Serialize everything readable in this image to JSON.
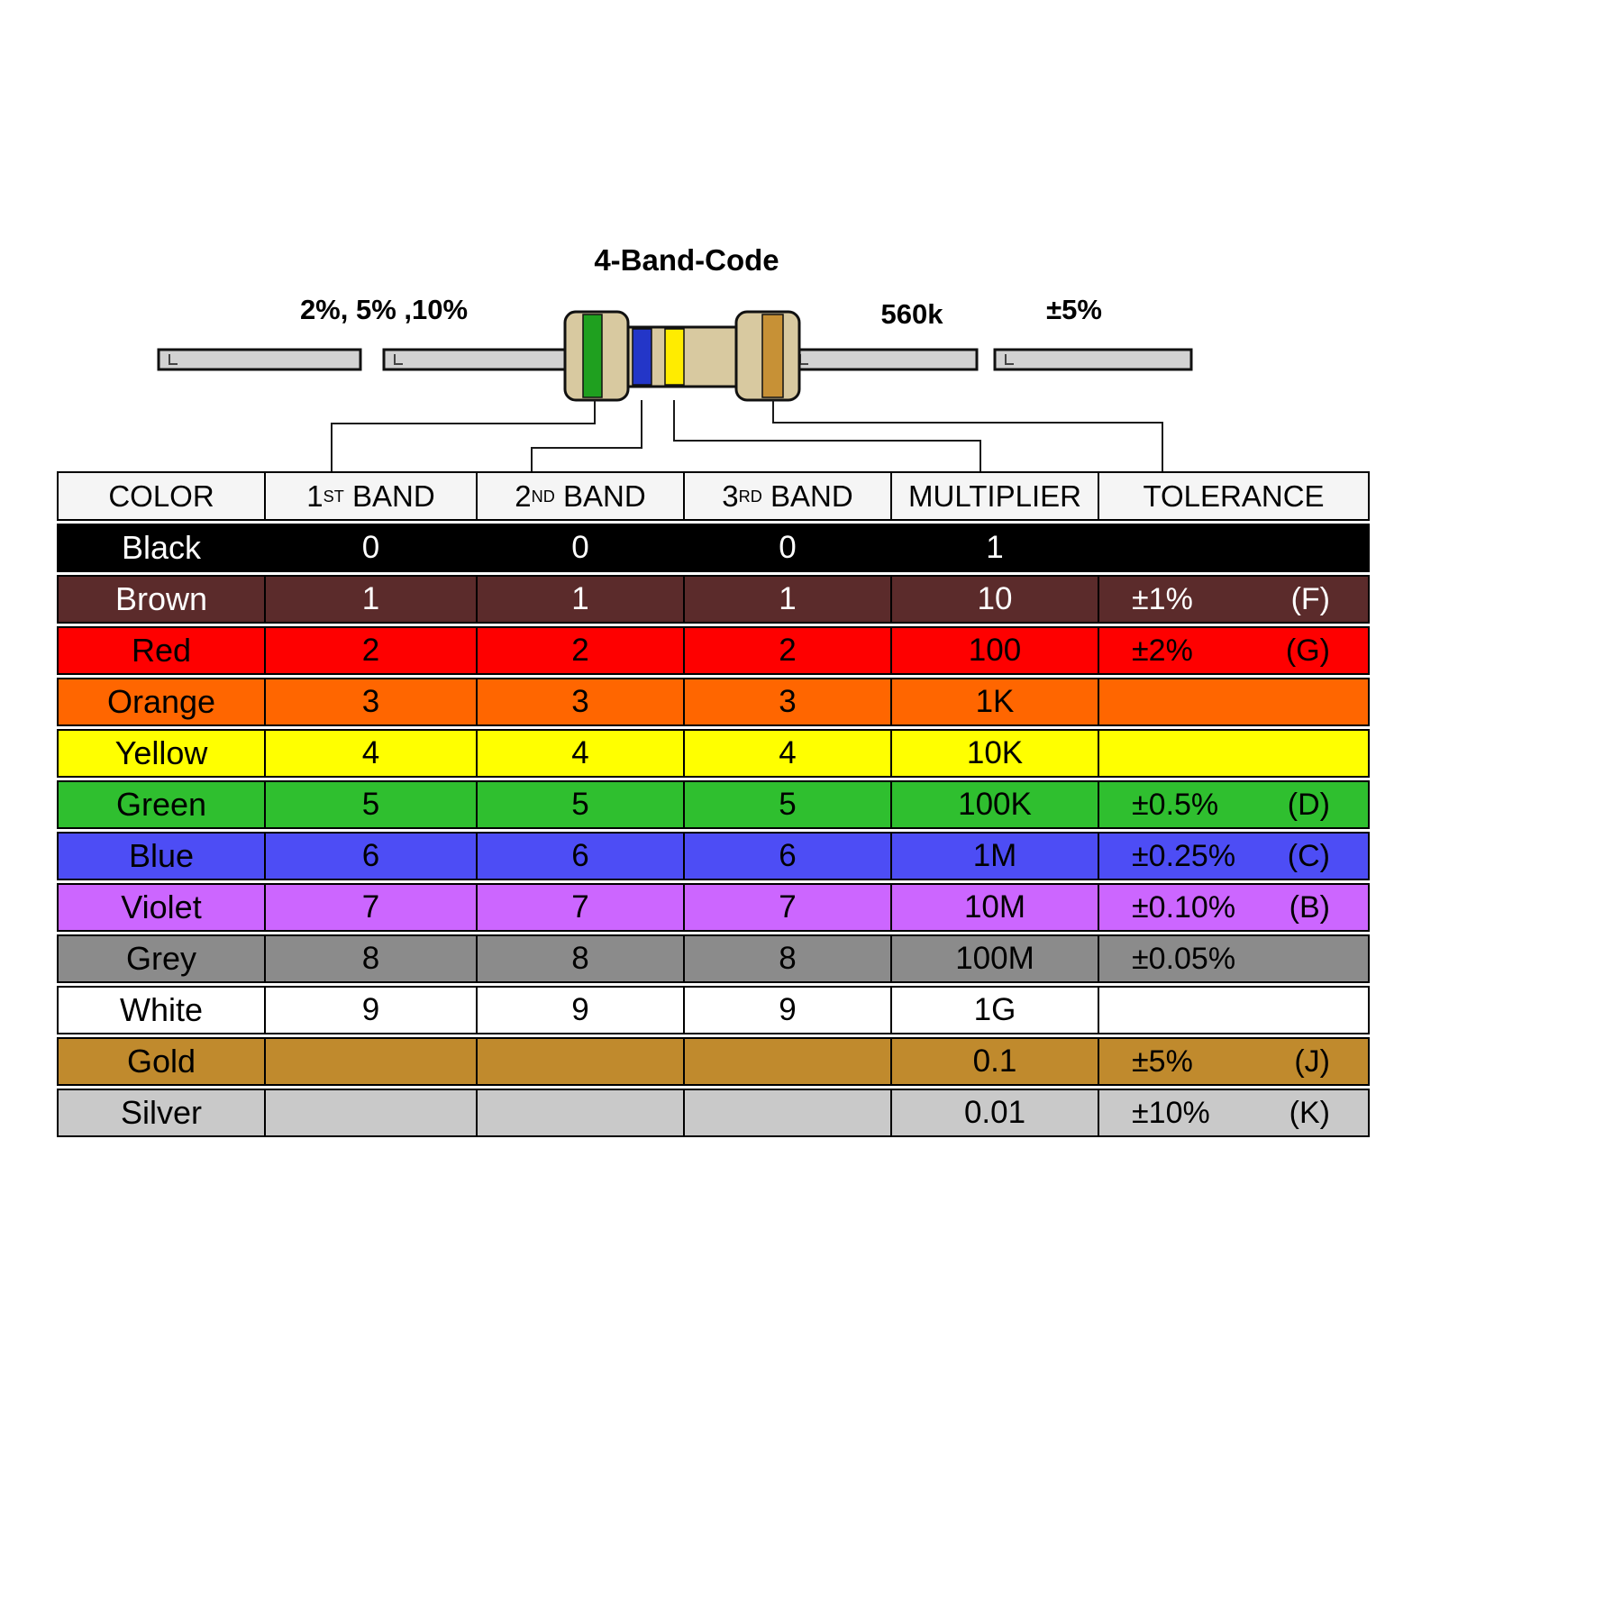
{
  "title": "4-Band-Code",
  "diagram": {
    "tolerance_options_label": "2%, 5% ,10%",
    "resistance_value_label": "560k",
    "tolerance_value_label": "±5%",
    "bands": [
      "green",
      "blue",
      "yellow",
      "gold"
    ]
  },
  "colors": {
    "resistor_body": "#d8c9a0",
    "band_green": "#1fa01f",
    "band_blue": "#2336c8",
    "band_yellow": "#ffec00",
    "band_gold": "#c79136",
    "wire_fill": "#d2d2d2"
  },
  "table": {
    "headers": [
      {
        "pre": "COLOR",
        "sup": "",
        "post": ""
      },
      {
        "pre": "1",
        "sup": "ST",
        "post": " BAND"
      },
      {
        "pre": "2",
        "sup": "ND",
        "post": " BAND"
      },
      {
        "pre": "3",
        "sup": "RD",
        "post": " BAND"
      },
      {
        "pre": "MULTIPLIER",
        "sup": "",
        "post": ""
      },
      {
        "pre": "TOLERANCE",
        "sup": "",
        "post": ""
      }
    ],
    "rows": [
      {
        "name": "Black",
        "b1": "0",
        "b2": "0",
        "b3": "0",
        "mult": "1",
        "tol": "",
        "tol_code": "",
        "bg": "#000000",
        "fg": "#ffffff"
      },
      {
        "name": "Brown",
        "b1": "1",
        "b2": "1",
        "b3": "1",
        "mult": "10",
        "tol": "±1%",
        "tol_code": "(F)",
        "bg": "#5b2b2b",
        "fg": "#ffffff"
      },
      {
        "name": "Red",
        "b1": "2",
        "b2": "2",
        "b3": "2",
        "mult": "100",
        "tol": "±2%",
        "tol_code": "(G)",
        "bg": "#fe0000",
        "fg": "#000000"
      },
      {
        "name": "Orange",
        "b1": "3",
        "b2": "3",
        "b3": "3",
        "mult": "1K",
        "tol": "",
        "tol_code": "",
        "bg": "#ff6600",
        "fg": "#000000"
      },
      {
        "name": "Yellow",
        "b1": "4",
        "b2": "4",
        "b3": "4",
        "mult": "10K",
        "tol": "",
        "tol_code": "",
        "bg": "#ffff00",
        "fg": "#000000"
      },
      {
        "name": "Green",
        "b1": "5",
        "b2": "5",
        "b3": "5",
        "mult": "100K",
        "tol": "±0.5%",
        "tol_code": "(D)",
        "bg": "#2fbf2f",
        "fg": "#000000"
      },
      {
        "name": "Blue",
        "b1": "6",
        "b2": "6",
        "b3": "6",
        "mult": "1M",
        "tol": "±0.25%",
        "tol_code": "(C)",
        "bg": "#4d4df5",
        "fg": "#000000"
      },
      {
        "name": "Violet",
        "b1": "7",
        "b2": "7",
        "b3": "7",
        "mult": "10M",
        "tol": "±0.10%",
        "tol_code": "(B)",
        "bg": "#cc66ff",
        "fg": "#000000"
      },
      {
        "name": "Grey",
        "b1": "8",
        "b2": "8",
        "b3": "8",
        "mult": "100M",
        "tol": "±0.05%",
        "tol_code": "",
        "bg": "#8b8b8b",
        "fg": "#000000"
      },
      {
        "name": "White",
        "b1": "9",
        "b2": "9",
        "b3": "9",
        "mult": "1G",
        "tol": "",
        "tol_code": "",
        "bg": "#ffffff",
        "fg": "#000000"
      },
      {
        "name": "Gold",
        "b1": "",
        "b2": "",
        "b3": "",
        "mult": "0.1",
        "tol": "±5%",
        "tol_code": "(J)",
        "bg": "#c08a2d",
        "fg": "#000000"
      },
      {
        "name": "Silver",
        "b1": "",
        "b2": "",
        "b3": "",
        "mult": "0.01",
        "tol": "±10%",
        "tol_code": "(K)",
        "bg": "#c9c9c9",
        "fg": "#000000"
      }
    ]
  }
}
